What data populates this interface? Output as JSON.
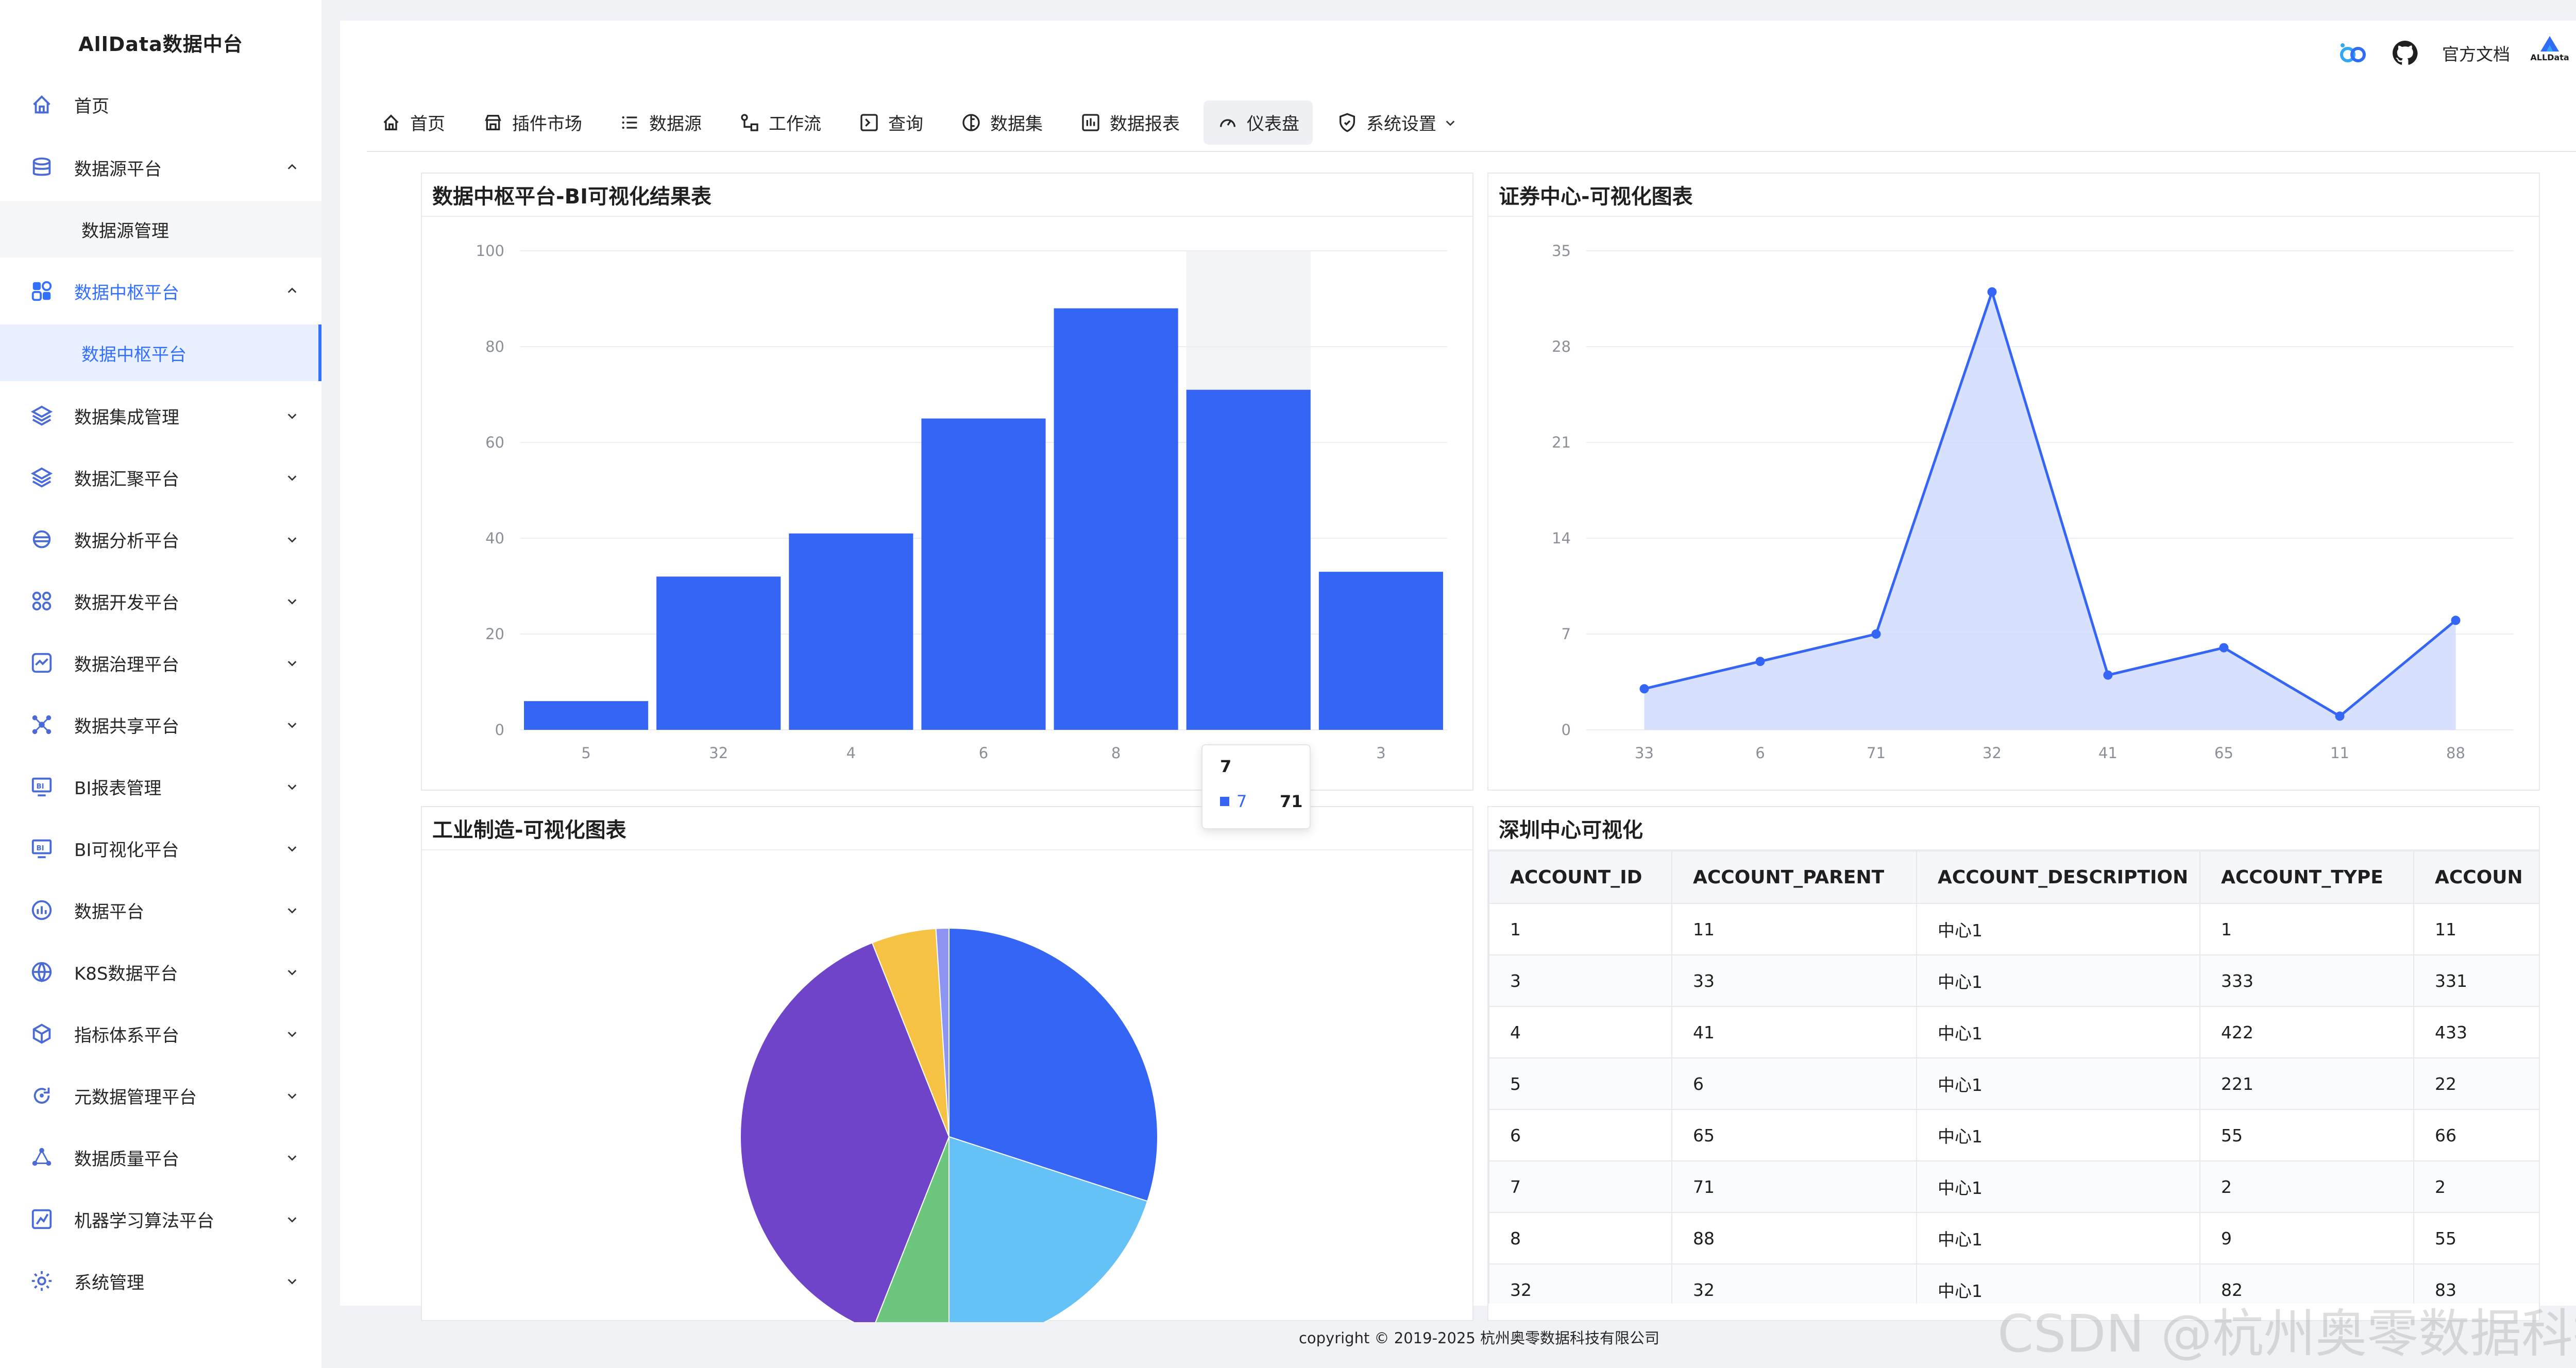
{
  "app": {
    "title": "AllData数据中台"
  },
  "sidebar": {
    "items": [
      {
        "label": "首页",
        "icon": "home-icon",
        "arrow": ""
      },
      {
        "label": "数据源平台",
        "icon": "database-icon",
        "arrow": "up"
      },
      {
        "label": "数据源管理",
        "icon": "",
        "arrow": "",
        "sub": true
      },
      {
        "label": "数据中枢平台",
        "icon": "apps-icon",
        "arrow": "up",
        "active": true
      },
      {
        "label": "数据中枢平台",
        "icon": "",
        "arrow": "",
        "sub": true,
        "selected": true
      },
      {
        "label": "数据集成管理",
        "icon": "layers-icon",
        "arrow": "down"
      },
      {
        "label": "数据汇聚平台",
        "icon": "layers-icon",
        "arrow": "down"
      },
      {
        "label": "数据分析平台",
        "icon": "analysis-icon",
        "arrow": "down"
      },
      {
        "label": "数据开发平台",
        "icon": "dev-icon",
        "arrow": "down"
      },
      {
        "label": "数据治理平台",
        "icon": "governance-icon",
        "arrow": "down"
      },
      {
        "label": "数据共享平台",
        "icon": "share-icon",
        "arrow": "down"
      },
      {
        "label": "BI报表管理",
        "icon": "bi-icon",
        "arrow": "down"
      },
      {
        "label": "BI可视化平台",
        "icon": "bi-icon",
        "arrow": "down"
      },
      {
        "label": "数据平台",
        "icon": "chart-icon",
        "arrow": "down"
      },
      {
        "label": "K8S数据平台",
        "icon": "globe-icon",
        "arrow": "down"
      },
      {
        "label": "指标体系平台",
        "icon": "cube-icon",
        "arrow": "down"
      },
      {
        "label": "元数据管理平台",
        "icon": "refresh-icon",
        "arrow": "down"
      },
      {
        "label": "数据质量平台",
        "icon": "network-icon",
        "arrow": "down"
      },
      {
        "label": "机器学习算法平台",
        "icon": "ml-icon",
        "arrow": "down"
      },
      {
        "label": "系统管理",
        "icon": "gear-icon",
        "arrow": "down"
      }
    ]
  },
  "header": {
    "doc_label": "官方文档",
    "avatar_text": "ALLData",
    "icons": [
      "logo-link-icon",
      "github-icon"
    ]
  },
  "topnav": {
    "items": [
      {
        "label": "首页",
        "icon": "home-icon"
      },
      {
        "label": "插件市场",
        "icon": "store-icon"
      },
      {
        "label": "数据源",
        "icon": "list-icon"
      },
      {
        "label": "工作流",
        "icon": "workflow-icon"
      },
      {
        "label": "查询",
        "icon": "terminal-icon"
      },
      {
        "label": "数据集",
        "icon": "dataset-icon"
      },
      {
        "label": "数据报表",
        "icon": "report-icon"
      },
      {
        "label": "仪表盘",
        "icon": "gauge-icon",
        "active": true
      },
      {
        "label": "系统设置",
        "icon": "shield-icon",
        "dropdown": true
      }
    ]
  },
  "panels": {
    "bar_title": "数据中枢平台-BI可视化结果表",
    "line_title": "证券中心-可视化图表",
    "pie_title": "工业制造-可视化图表",
    "table_title": "深圳中心可视化"
  },
  "chart_data": [
    {
      "type": "bar",
      "title": "数据中枢平台-BI可视化结果表",
      "categories": [
        "5",
        "32",
        "4",
        "6",
        "8",
        "7",
        "3"
      ],
      "series": [
        {
          "name": "7",
          "values": [
            6,
            32,
            41,
            65,
            88,
            71,
            33
          ]
        }
      ],
      "ylim": [
        0,
        100
      ],
      "yticks": [
        0,
        20,
        40,
        60,
        80,
        100
      ],
      "color": "#3565f5",
      "highlight_index": 5,
      "grid": true
    },
    {
      "type": "area",
      "title": "证券中心-可视化图表",
      "categories": [
        "33",
        "6",
        "71",
        "32",
        "41",
        "65",
        "11",
        "88"
      ],
      "series": [
        {
          "values": [
            3,
            5,
            7,
            32,
            4,
            6,
            1,
            8
          ]
        }
      ],
      "ylim": [
        0,
        35
      ],
      "yticks": [
        0,
        7,
        14,
        21,
        28,
        35
      ],
      "color": "#3565f5",
      "fill": "#d0dbfb",
      "grid": true
    },
    {
      "type": "pie",
      "title": "工业制造-可视化图表",
      "slices": [
        {
          "value": 30,
          "color": "#3565f5"
        },
        {
          "value": 20,
          "color": "#65c2f7"
        },
        {
          "value": 6,
          "color": "#6cc67d"
        },
        {
          "value": 38,
          "color": "#6f44c9"
        },
        {
          "value": 5,
          "color": "#f5c243"
        },
        {
          "value": 1,
          "color": "#8e94f2"
        }
      ]
    }
  ],
  "tooltip": {
    "title": "7",
    "series_name": "7",
    "value": "71"
  },
  "table": {
    "columns": [
      "ACCOUNT_ID",
      "ACCOUNT_PARENT",
      "ACCOUNT_DESCRIPTION",
      "ACCOUNT_TYPE",
      "ACCOUN"
    ],
    "rows": [
      [
        "1",
        "11",
        "中心1",
        "1",
        "11"
      ],
      [
        "3",
        "33",
        "中心1",
        "333",
        "331"
      ],
      [
        "4",
        "41",
        "中心1",
        "422",
        "433"
      ],
      [
        "5",
        "6",
        "中心1",
        "221",
        "22"
      ],
      [
        "6",
        "65",
        "中心1",
        "55",
        "66"
      ],
      [
        "7",
        "71",
        "中心1",
        "2",
        "2"
      ],
      [
        "8",
        "88",
        "中心1",
        "9",
        "55"
      ],
      [
        "32",
        "32",
        "中心1",
        "82",
        "83"
      ]
    ]
  },
  "footer": {
    "copyright": "copyright © 2019-2025 杭州奥零数据科技有限公司"
  },
  "watermark": "CSDN @杭州奥零数据科技"
}
